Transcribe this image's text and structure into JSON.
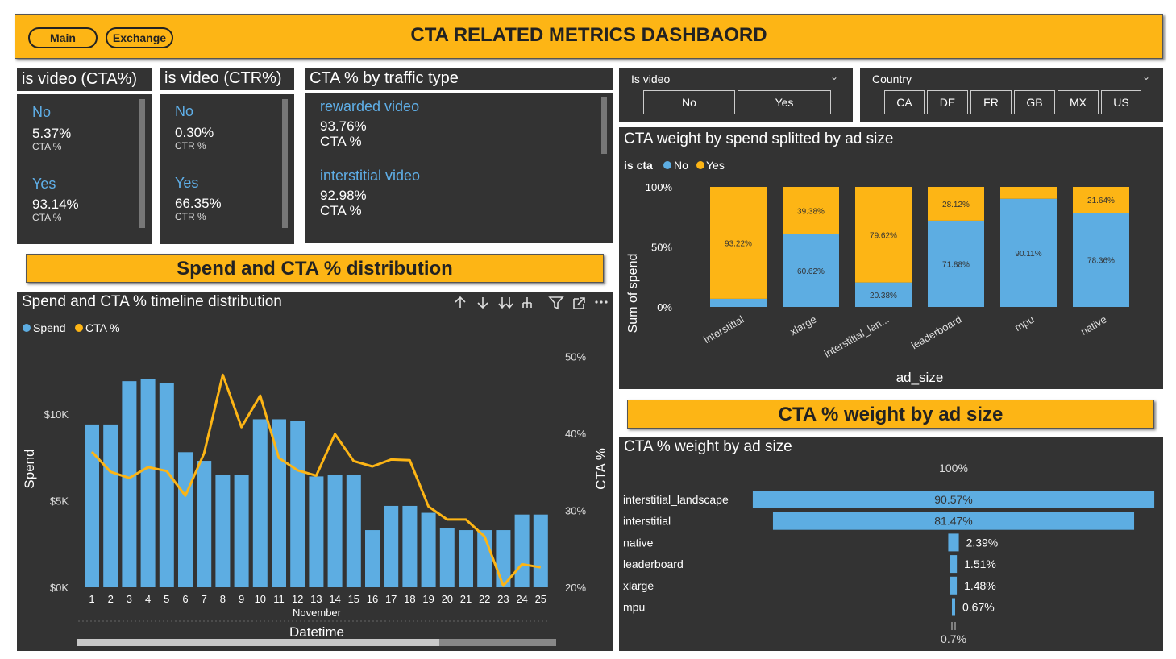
{
  "header": {
    "title": "CTA RELATED METRICS DASHBAORD",
    "nav_main": "Main",
    "nav_exchange": "Exchange"
  },
  "kpi_cta": {
    "title": "is video (CTA%)",
    "items": [
      {
        "label": "No",
        "value": "5.37%",
        "sub": "CTA %"
      },
      {
        "label": "Yes",
        "value": "93.14%",
        "sub": "CTA %"
      }
    ]
  },
  "kpi_ctr": {
    "title": "is video (CTR%)",
    "items": [
      {
        "label": "No",
        "value": "0.30%",
        "sub": "CTR %"
      },
      {
        "label": "Yes",
        "value": "66.35%",
        "sub": "CTR %"
      }
    ]
  },
  "kpi_traffic": {
    "title": "CTA % by traffic type",
    "items": [
      {
        "label": "rewarded video",
        "value": "93.76%",
        "sub": "CTA %"
      },
      {
        "label": "interstitial video",
        "value": "92.98%",
        "sub": "CTA %"
      }
    ]
  },
  "slicer_video": {
    "title": "Is video",
    "options": [
      "No",
      "Yes"
    ]
  },
  "slicer_country": {
    "title": "Country",
    "options": [
      "CA",
      "DE",
      "FR",
      "GB",
      "MX",
      "US"
    ]
  },
  "section_spend": "Spend and CTA % distribution",
  "section_weight": "CTA % weight by ad size",
  "colors": {
    "blue": "#5DADE2",
    "orange": "#FDB515",
    "panel": "#333333"
  },
  "chart_data": [
    {
      "type": "bar",
      "title": "CTA weight by spend splitted by ad size",
      "legend_title": "is cta",
      "legend_position": "top-left",
      "xlabel": "ad_size",
      "ylabel": "Sum of spend",
      "ylim": [
        0,
        100
      ],
      "y_ticks": [
        "0%",
        "50%",
        "100%"
      ],
      "categories": [
        "interstitial",
        "xlarge",
        "interstitial_lan...",
        "leaderboard",
        "mpu",
        "native"
      ],
      "series": [
        {
          "name": "No",
          "color": "#5DADE2",
          "values": [
            6.78,
            60.62,
            20.38,
            71.88,
            90.11,
            78.36
          ],
          "labels": [
            "",
            "60.62%",
            "20.38%",
            "71.88%",
            "90.11%",
            "78.36%"
          ]
        },
        {
          "name": "Yes",
          "color": "#FDB515",
          "values": [
            93.22,
            39.38,
            79.62,
            28.12,
            9.89,
            21.64
          ],
          "labels": [
            "93.22%",
            "39.38%",
            "79.62%",
            "28.12%",
            "",
            "21.64%"
          ]
        }
      ]
    },
    {
      "type": "bar",
      "title": "Spend and CTA % timeline distribution",
      "legend_position": "top-left",
      "xlabel": "Datetime",
      "x_sublabel": "November",
      "ylabel": "Spend",
      "y2label": "CTA %",
      "ylim": [
        0,
        14000
      ],
      "y_ticks": [
        {
          "v": 0,
          "t": "$0K"
        },
        {
          "v": 5000,
          "t": "$5K"
        },
        {
          "v": 10000,
          "t": "$10K"
        }
      ],
      "y2lim": [
        20,
        51.5
      ],
      "y2_ticks": [
        {
          "v": 20,
          "t": "20%"
        },
        {
          "v": 30,
          "t": "30%"
        },
        {
          "v": 40,
          "t": "40%"
        },
        {
          "v": 50,
          "t": "50%"
        }
      ],
      "categories": [
        "1",
        "2",
        "3",
        "4",
        "5",
        "6",
        "7",
        "8",
        "9",
        "10",
        "11",
        "12",
        "13",
        "14",
        "15",
        "16",
        "17",
        "18",
        "19",
        "20",
        "21",
        "22",
        "23",
        "24",
        "25"
      ],
      "series": [
        {
          "name": "Spend",
          "type": "bar",
          "color": "#5DADE2",
          "values": [
            9400,
            9400,
            11900,
            12000,
            11800,
            7800,
            7300,
            6500,
            6500,
            9700,
            9700,
            9600,
            6400,
            6500,
            6500,
            3300,
            4700,
            4700,
            4300,
            3400,
            3300,
            3300,
            3300,
            4200,
            4200
          ]
        },
        {
          "name": "CTA %",
          "type": "line",
          "color": "#FDB515",
          "values": [
            37.6,
            35.0,
            34.2,
            35.6,
            35.1,
            31.9,
            37.4,
            47.6,
            40.8,
            44.9,
            36.8,
            35.2,
            34.5,
            39.9,
            36.4,
            35.7,
            36.6,
            36.5,
            30.5,
            28.8,
            28.8,
            26.6,
            20.2,
            23.0,
            22.6
          ]
        }
      ]
    },
    {
      "type": "bar",
      "title": "CTA % weight by ad size",
      "top_label": "100%",
      "bottom_label": "0.7%",
      "categories": [
        "interstitial_landscape",
        "interstitial",
        "native",
        "leaderboard",
        "xlarge",
        "mpu"
      ],
      "values": [
        90.57,
        81.47,
        2.39,
        1.51,
        1.48,
        0.67
      ],
      "labels": [
        "90.57%",
        "81.47%",
        "2.39%",
        "1.51%",
        "1.48%",
        "0.67%"
      ]
    }
  ]
}
